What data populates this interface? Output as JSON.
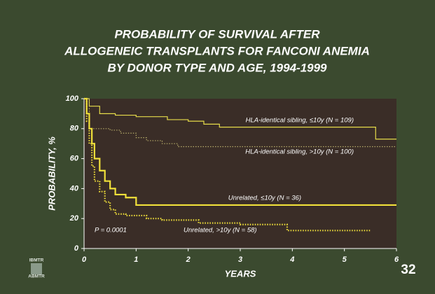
{
  "chart_data": {
    "type": "line",
    "title_lines": [
      "PROBABILITY OF SURVIVAL AFTER",
      "ALLOGENEIC TRANSPLANTS FOR FANCONI ANEMIA",
      "BY DONOR TYPE AND AGE, 1994-1999"
    ],
    "xlabel": "YEARS",
    "ylabel": "PROBABILITY, %",
    "xlim": [
      0,
      6
    ],
    "ylim": [
      0,
      100
    ],
    "xticks": [
      0,
      1,
      2,
      3,
      4,
      5,
      6
    ],
    "yticks": [
      0,
      20,
      40,
      60,
      80,
      100
    ],
    "annotations": [
      "P = 0.0001"
    ],
    "series": [
      {
        "name": "HLA-identical sibling, ≤10y (N = 109)",
        "color": "#e6dc4a",
        "style": "solid",
        "width": 1.2,
        "x": [
          0,
          0.1,
          0.1,
          0.3,
          0.3,
          0.6,
          0.6,
          1.0,
          1.0,
          1.6,
          1.6,
          2.0,
          2.0,
          2.3,
          2.3,
          2.6,
          2.6,
          5.6,
          5.6,
          6
        ],
        "values": [
          100,
          100,
          95,
          95,
          90,
          90,
          89,
          89,
          88,
          88,
          86,
          86,
          85,
          85,
          83,
          83,
          81,
          81,
          73,
          73
        ]
      },
      {
        "name": "HLA-identical sibling, >10y (N = 100)",
        "color": "#b8ad6a",
        "style": "dotted",
        "width": 1.2,
        "x": [
          0,
          0.1,
          0.1,
          0.5,
          0.5,
          0.7,
          0.7,
          1.0,
          1.0,
          1.2,
          1.2,
          1.5,
          1.5,
          1.8,
          1.8,
          6
        ],
        "values": [
          100,
          100,
          80,
          80,
          79,
          79,
          77,
          77,
          74,
          74,
          72,
          72,
          70,
          70,
          68,
          68
        ]
      },
      {
        "name": "Unrelated, ≤10y (N = 36)",
        "color": "#f0e03a",
        "style": "solid",
        "width": 2.2,
        "x": [
          0,
          0.05,
          0.05,
          0.1,
          0.1,
          0.15,
          0.15,
          0.2,
          0.2,
          0.3,
          0.3,
          0.4,
          0.4,
          0.5,
          0.5,
          0.6,
          0.6,
          0.8,
          0.8,
          1.0,
          1.0,
          6
        ],
        "values": [
          100,
          100,
          90,
          90,
          80,
          80,
          70,
          70,
          60,
          60,
          52,
          52,
          45,
          45,
          40,
          40,
          36,
          36,
          34,
          34,
          29,
          29
        ]
      },
      {
        "name": "Unrelated, >10y (N = 58)",
        "color": "#f0e03a",
        "style": "dotted",
        "width": 2.2,
        "x": [
          0,
          0.05,
          0.05,
          0.1,
          0.1,
          0.15,
          0.15,
          0.2,
          0.2,
          0.3,
          0.3,
          0.4,
          0.4,
          0.5,
          0.5,
          0.6,
          0.6,
          0.8,
          0.8,
          1.2,
          1.2,
          1.5,
          1.5,
          2.2,
          2.2,
          3.0,
          3.0,
          3.9,
          3.9,
          5.5
        ],
        "values": [
          100,
          100,
          85,
          85,
          70,
          70,
          55,
          55,
          45,
          45,
          38,
          38,
          31,
          31,
          26,
          26,
          23,
          23,
          22,
          22,
          20,
          20,
          19,
          19,
          17,
          17,
          16,
          16,
          12,
          12
        ]
      }
    ]
  },
  "logo": {
    "top": "IBMTR",
    "bottom": "ABMTR"
  },
  "slide_number": "32"
}
